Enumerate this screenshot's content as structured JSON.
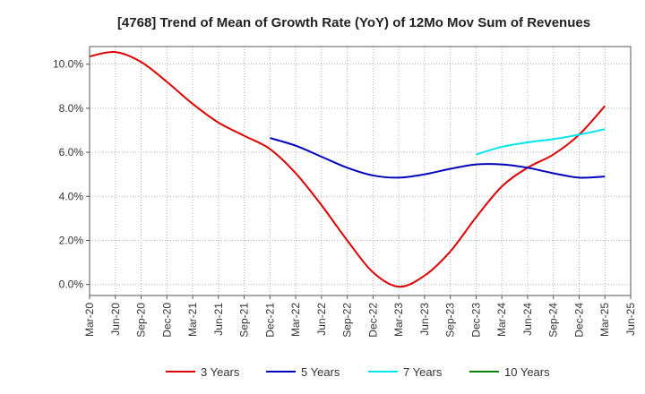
{
  "chart_data": {
    "type": "line",
    "title": "[4768]  Trend of Mean of Growth Rate (YoY) of 12Mo Mov Sum of Revenues",
    "xlabel": "",
    "ylabel": "",
    "ylim": [
      -0.5,
      10.8
    ],
    "y_ticks": [
      0.0,
      2.0,
      4.0,
      6.0,
      8.0,
      10.0
    ],
    "y_tick_labels": [
      "0.0%",
      "2.0%",
      "4.0%",
      "6.0%",
      "8.0%",
      "10.0%"
    ],
    "grid": true,
    "legend_position": "bottom",
    "categories": [
      "Mar-20",
      "Jun-20",
      "Sep-20",
      "Dec-20",
      "Mar-21",
      "Jun-21",
      "Sep-21",
      "Dec-21",
      "Mar-22",
      "Jun-22",
      "Sep-22",
      "Dec-22",
      "Mar-23",
      "Jun-23",
      "Sep-23",
      "Dec-23",
      "Mar-24",
      "Jun-24",
      "Sep-24",
      "Dec-24",
      "Mar-25",
      "Jun-25"
    ],
    "series": [
      {
        "name": "3 Years",
        "color": "#dd0000",
        "values": [
          10.35,
          10.55,
          10.1,
          9.2,
          8.2,
          7.35,
          6.75,
          6.15,
          5.05,
          3.6,
          2.0,
          0.55,
          -0.1,
          0.4,
          1.5,
          3.05,
          4.45,
          5.3,
          5.9,
          6.8,
          8.1,
          null
        ]
      },
      {
        "name": "5 Years",
        "color": "#0000bb",
        "values": [
          null,
          null,
          null,
          null,
          null,
          null,
          null,
          6.65,
          6.3,
          5.8,
          5.3,
          4.95,
          4.85,
          5.0,
          5.25,
          5.45,
          5.45,
          5.3,
          5.05,
          4.85,
          4.9,
          null
        ]
      },
      {
        "name": "7 Years",
        "color": "#00e5ee",
        "values": [
          null,
          null,
          null,
          null,
          null,
          null,
          null,
          null,
          null,
          null,
          null,
          null,
          null,
          null,
          null,
          5.9,
          6.25,
          6.45,
          6.6,
          6.8,
          7.05,
          null
        ]
      },
      {
        "name": "10 Years",
        "color": "#008000",
        "values": [
          null,
          null,
          null,
          null,
          null,
          null,
          null,
          null,
          null,
          null,
          null,
          null,
          null,
          null,
          null,
          null,
          null,
          null,
          null,
          null,
          null,
          null
        ]
      }
    ]
  }
}
